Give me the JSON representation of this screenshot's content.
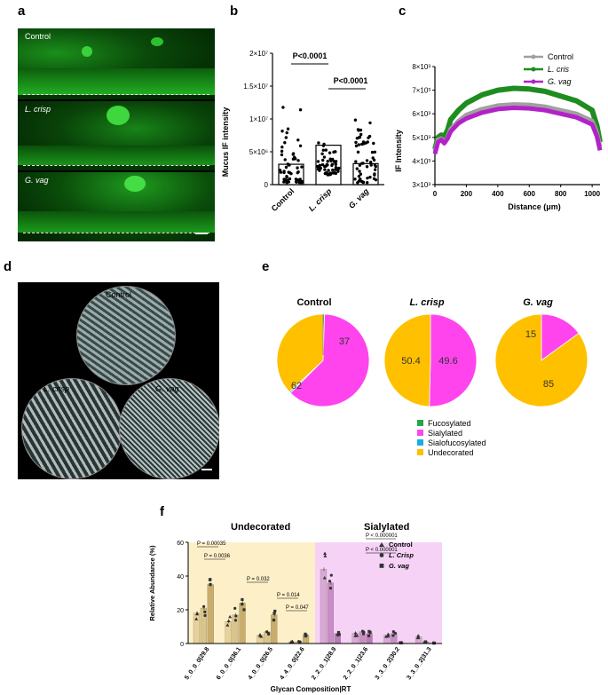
{
  "panels": {
    "a": "a",
    "b": "b",
    "c": "c",
    "d": "d",
    "e": "e",
    "f": "f"
  },
  "panel_a": {
    "labels": [
      "Control",
      "L. crisp",
      "G. vag"
    ]
  },
  "panel_b": {
    "chart_data": {
      "type": "bar",
      "categories": [
        "Control",
        "L. crisp",
        "G. vag"
      ],
      "values": [
        3100000,
        6000000,
        3200000
      ],
      "ylabel": "Mucus IF intensity",
      "ylim": [
        0,
        20000000
      ],
      "yticks": [
        "0",
        "5×10⁶",
        "1×10⁷",
        "1.5×10⁷",
        "2×10⁷"
      ],
      "annotations": [
        "P<0.0001",
        "P<0.0001"
      ]
    }
  },
  "panel_c": {
    "chart_data": {
      "type": "line",
      "xlabel": "Distance (μm)",
      "ylabel": "IF Intensity",
      "xlim": [
        0,
        1050
      ],
      "ylim": [
        3000,
        8000
      ],
      "xticks": [
        "0",
        "200",
        "400",
        "600",
        "800",
        "1000"
      ],
      "yticks": [
        "3×10³",
        "4×10³",
        "5×10³",
        "6×10³",
        "7×10³",
        "8×10³"
      ],
      "legend": [
        "Control",
        "L. cris",
        "G. vag"
      ],
      "colors": [
        "#a0a0a0",
        "#1f8c1f",
        "#b322c8"
      ],
      "x": [
        0,
        20,
        40,
        60,
        80,
        100,
        150,
        200,
        300,
        400,
        500,
        600,
        700,
        800,
        900,
        1000,
        1030,
        1050
      ],
      "series": [
        {
          "name": "Control",
          "values": [
            4400,
            4900,
            4950,
            4800,
            5000,
            5350,
            5700,
            5950,
            6200,
            6350,
            6400,
            6380,
            6300,
            6150,
            6000,
            5700,
            5200,
            4600
          ]
        },
        {
          "name": "L. cris",
          "values": [
            4500,
            5000,
            5100,
            5050,
            5300,
            5750,
            6150,
            6450,
            6800,
            7000,
            7080,
            7050,
            6950,
            6750,
            6550,
            6150,
            5500,
            4800
          ]
        },
        {
          "name": "G. vag",
          "values": [
            4300,
            4800,
            4900,
            4750,
            4950,
            5250,
            5600,
            5800,
            6050,
            6200,
            6250,
            6230,
            6150,
            6000,
            5850,
            5550,
            5050,
            4450
          ]
        }
      ]
    }
  },
  "panel_d": {
    "labels": [
      "Control",
      "L. crisp",
      "G. vag"
    ]
  },
  "panel_e": {
    "chart_data": {
      "type": "pie",
      "charts": [
        {
          "title": "Control",
          "slices": [
            {
              "name": "Fucosylated",
              "value": 0.5
            },
            {
              "name": "Sialylated",
              "value": 62
            },
            {
              "name": "Sialofucosylated",
              "value": 0.5
            },
            {
              "name": "Undecorated",
              "value": 37
            }
          ],
          "labels": [
            "62",
            "37"
          ]
        },
        {
          "title": "L. crisp",
          "slices": [
            {
              "name": "Sialylated",
              "value": 50.4
            },
            {
              "name": "Undecorated",
              "value": 49.6
            }
          ],
          "labels": [
            "50.4",
            "49.6"
          ]
        },
        {
          "title": "G. vag",
          "slices": [
            {
              "name": "Sialylated",
              "value": 15
            },
            {
              "name": "Undecorated",
              "value": 85
            }
          ],
          "labels": [
            "15",
            "85"
          ]
        }
      ],
      "legend": [
        "Fucosylated",
        "Sialylated",
        "Sialofucosylated",
        "Undecorated"
      ],
      "colors": [
        "#22a84a",
        "#ff44ee",
        "#1aaee0",
        "#ffc000"
      ]
    }
  },
  "panel_f": {
    "chart_data": {
      "type": "bar",
      "ylabel": "Relative Abundance (%)",
      "xlabel": "Glycan Composition|RT",
      "ylim": [
        0,
        60
      ],
      "yticks": [
        "0",
        "20",
        "40",
        "60"
      ],
      "regions": [
        "Undecorated",
        "Sialylated"
      ],
      "categories": [
        "5_0_0_0|29.8",
        "6_0_0_0|36.1",
        "4_0_0_0|26.5",
        "4_4_0_0|22.6",
        "2_2_0_1|28.9",
        "2_2_0_1|23.6",
        "3_3_0_2|30.2",
        "3_3_0_2|31.3"
      ],
      "series": [
        {
          "name": "Control",
          "values": [
            18,
            13,
            5,
            1,
            44,
            6,
            5,
            4
          ]
        },
        {
          "name": "L. Crisp",
          "values": [
            21,
            17,
            7,
            1,
            36,
            7,
            6,
            1
          ]
        },
        {
          "name": "G. vag",
          "values": [
            35,
            24,
            17,
            5,
            6,
            6,
            0.5,
            0.3
          ]
        }
      ],
      "annotations": [
        "P = 0.00035",
        "P = 0.0036",
        "P = 0.032",
        "P = 0.014",
        "P = 0.047",
        "P < 0.000001",
        "P < 0.000001"
      ],
      "legend": [
        "Control",
        "L. Crisp",
        "G. vag"
      ]
    }
  }
}
